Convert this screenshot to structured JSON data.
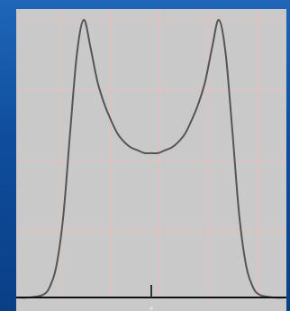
{
  "chart_data": {
    "type": "line",
    "title": "",
    "xlabel": "",
    "ylabel": "",
    "grid": true,
    "legend": "none",
    "xlim": [
      -1.0,
      1.0
    ],
    "ylim": [
      0,
      1.0
    ],
    "x_ticks": [
      0
    ],
    "series": [
      {
        "x": [
          -1.0,
          -0.9,
          -0.8,
          -0.75,
          -0.7,
          -0.65,
          -0.6,
          -0.55,
          -0.5,
          -0.45,
          -0.4,
          -0.35,
          -0.3,
          -0.25,
          -0.2,
          -0.15,
          -0.1,
          -0.05,
          0.0,
          0.05,
          0.1,
          0.15,
          0.2,
          0.25,
          0.3,
          0.35,
          0.4,
          0.45,
          0.5,
          0.55,
          0.6,
          0.65,
          0.7,
          0.75,
          0.8,
          0.9,
          1.0
        ],
        "y": [
          0.0,
          0.0,
          0.01,
          0.04,
          0.12,
          0.3,
          0.6,
          0.88,
          1.0,
          0.9,
          0.78,
          0.7,
          0.64,
          0.59,
          0.56,
          0.54,
          0.53,
          0.52,
          0.52,
          0.52,
          0.53,
          0.54,
          0.56,
          0.59,
          0.64,
          0.7,
          0.78,
          0.9,
          1.0,
          0.88,
          0.6,
          0.3,
          0.12,
          0.04,
          0.01,
          0.0,
          0.0
        ],
        "color": "#555555"
      }
    ],
    "colors": {
      "background": "#c9c9c9",
      "grid": "#efbcbc",
      "baseline": "#111111",
      "slide_background": "#0d4a96"
    }
  }
}
